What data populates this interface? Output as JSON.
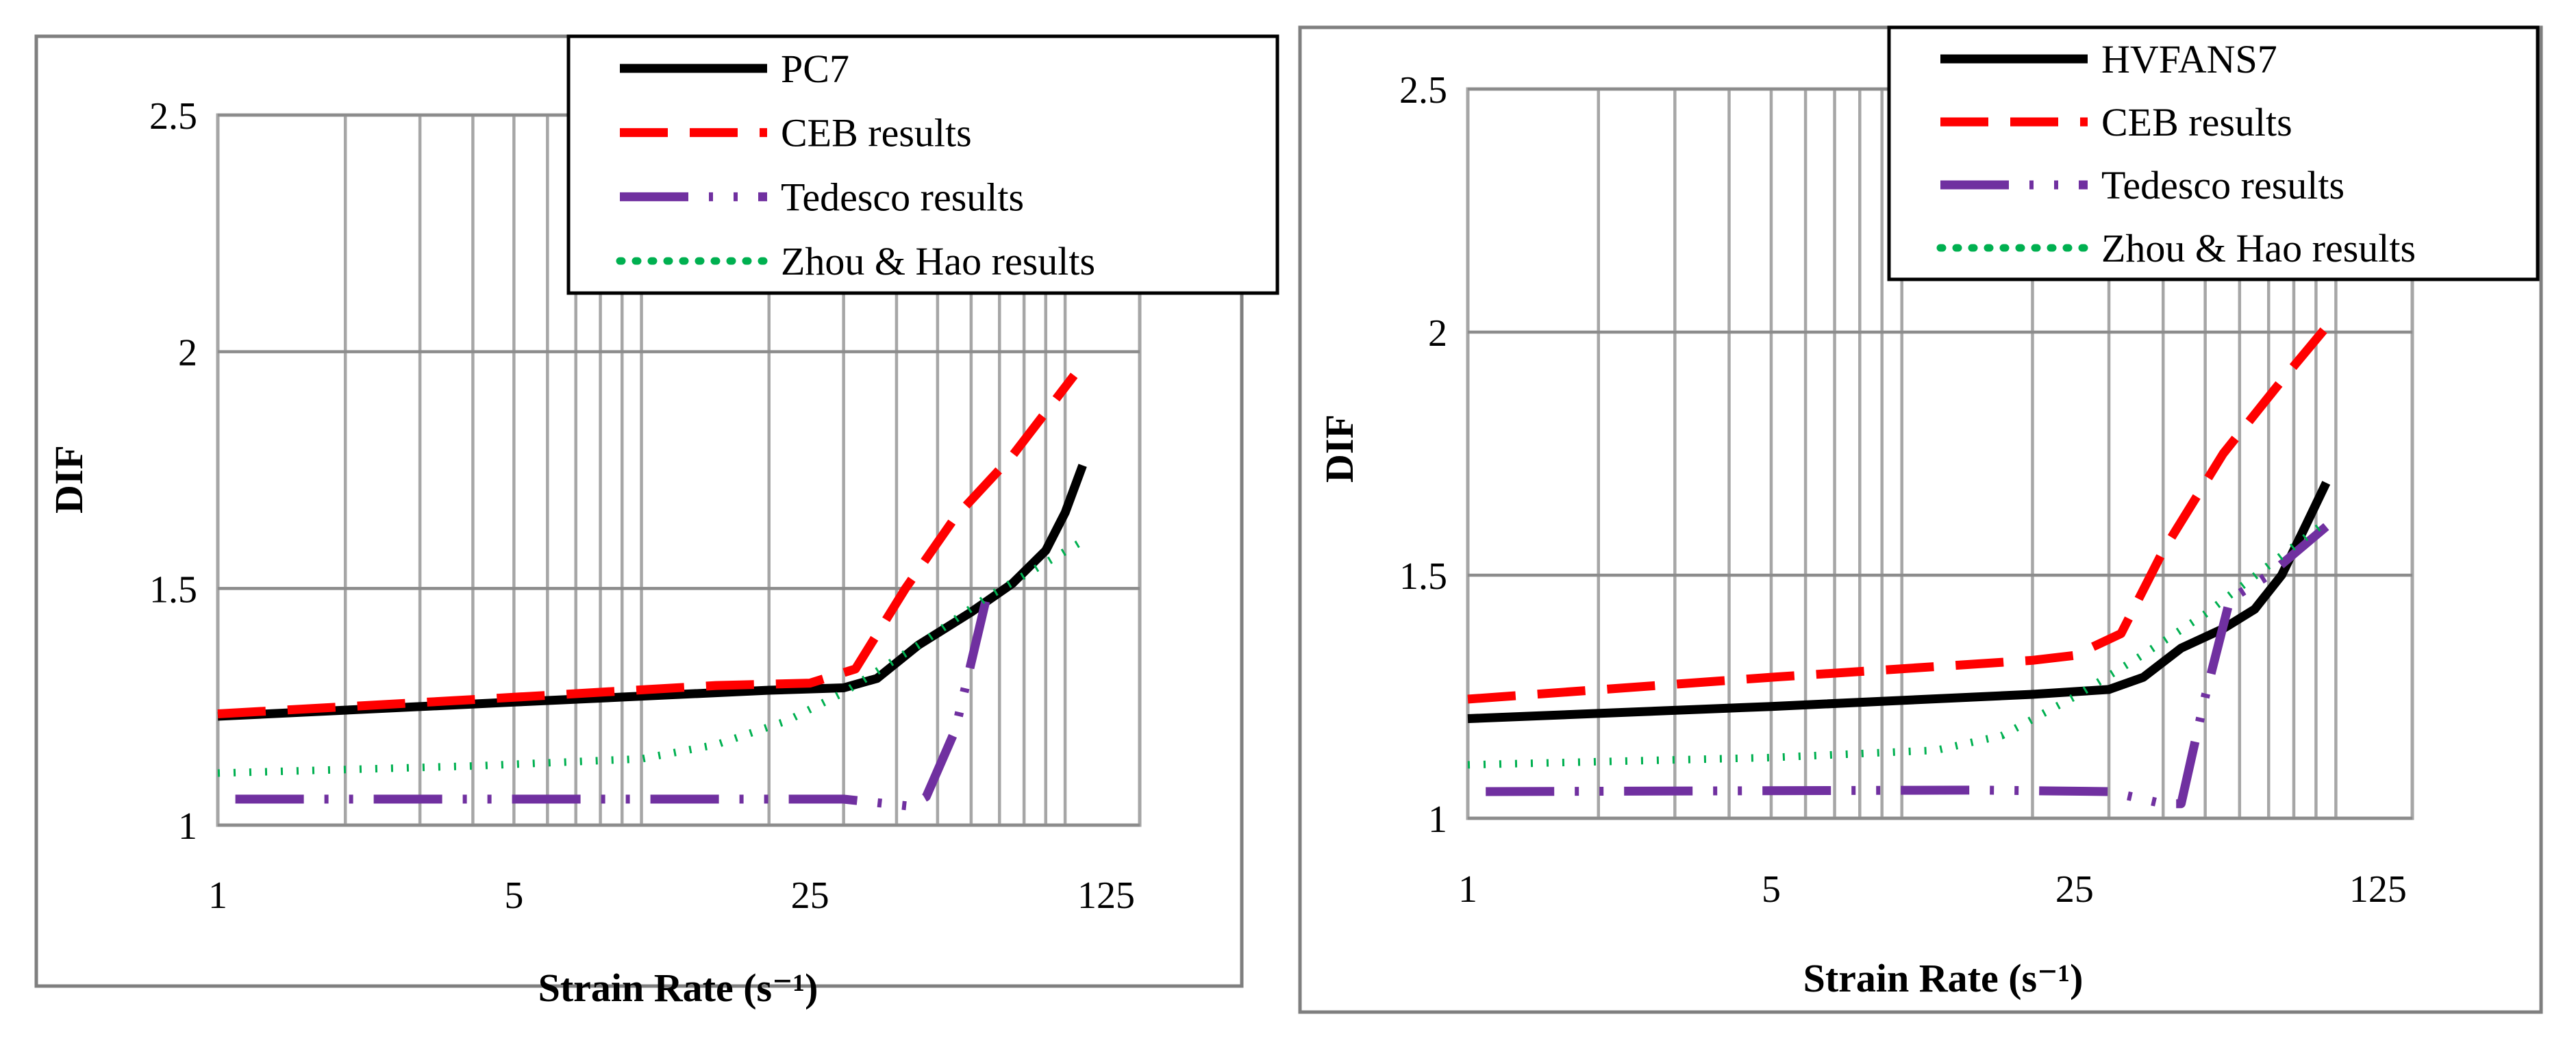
{
  "chart_data": [
    {
      "type": "line",
      "title": "",
      "xlabel": "Strain Rate (s⁻¹)",
      "ylabel": "DIF",
      "x_scale": "log",
      "xlim": [
        1,
        150
      ],
      "ylim": [
        1,
        2.5
      ],
      "x_ticks": [
        "1",
        "5",
        "25",
        "125"
      ],
      "x_tick_values": [
        1,
        5,
        25,
        125
      ],
      "y_ticks": [
        "1",
        "1.5",
        "2",
        "2.5"
      ],
      "y_tick_values": [
        1,
        1.5,
        2,
        2.5
      ],
      "grid": true,
      "legend_position": "top-right",
      "series": [
        {
          "name": "PC7",
          "color": "#000000",
          "style": "solid",
          "points": [
            [
              1,
              1.23
            ],
            [
              5,
              1.26
            ],
            [
              20,
              1.285
            ],
            [
              30,
              1.29
            ],
            [
              36,
              1.31
            ],
            [
              45,
              1.38
            ],
            [
              60,
              1.45
            ],
            [
              75,
              1.51
            ],
            [
              90,
              1.58
            ],
            [
              100,
              1.66
            ],
            [
              110,
              1.76
            ]
          ]
        },
        {
          "name": "CEB results",
          "color": "#ff0000",
          "style": "dashed",
          "points": [
            [
              1,
              1.235
            ],
            [
              5,
              1.27
            ],
            [
              15,
              1.295
            ],
            [
              25,
              1.3
            ],
            [
              32,
              1.33
            ],
            [
              42,
              1.5
            ],
            [
              55,
              1.65
            ],
            [
              75,
              1.78
            ],
            [
              105,
              1.95
            ]
          ]
        },
        {
          "name": "Tedesco results",
          "color": "#7030a0",
          "style": "dashdot",
          "points": [
            [
              1.1,
              1.055
            ],
            [
              15,
              1.055
            ],
            [
              30,
              1.055
            ],
            [
              43,
              1.04
            ],
            [
              47,
              1.06
            ],
            [
              55,
              1.2
            ],
            [
              66,
              1.5
            ]
          ]
        },
        {
          "name": "Zhou & Hao results",
          "color": "#00b050",
          "style": "dotted",
          "points": [
            [
              1,
              1.11
            ],
            [
              4,
              1.125
            ],
            [
              10,
              1.14
            ],
            [
              15,
              1.17
            ],
            [
              22,
              1.22
            ],
            [
              30,
              1.28
            ],
            [
              45,
              1.38
            ],
            [
              65,
              1.48
            ],
            [
              110,
              1.6
            ]
          ]
        }
      ]
    },
    {
      "type": "line",
      "title": "",
      "xlabel": "Strain Rate (s⁻¹)",
      "ylabel": "DIF",
      "x_scale": "log",
      "xlim": [
        1,
        150
      ],
      "ylim": [
        1,
        2.5
      ],
      "x_ticks": [
        "1",
        "5",
        "25",
        "125"
      ],
      "x_tick_values": [
        1,
        5,
        25,
        125
      ],
      "y_ticks": [
        "1",
        "1.5",
        "2",
        "2.5"
      ],
      "y_tick_values": [
        1,
        1.5,
        2,
        2.5
      ],
      "grid": true,
      "legend_position": "top-right",
      "series": [
        {
          "name": "HVFANS7",
          "color": "#000000",
          "style": "solid",
          "points": [
            [
              1,
              1.205
            ],
            [
              5,
              1.23
            ],
            [
              20,
              1.255
            ],
            [
              30,
              1.265
            ],
            [
              36,
              1.29
            ],
            [
              44,
              1.35
            ],
            [
              55,
              1.39
            ],
            [
              65,
              1.43
            ],
            [
              75,
              1.5
            ],
            [
              85,
              1.6
            ],
            [
              95,
              1.69
            ]
          ]
        },
        {
          "name": "CEB results",
          "color": "#ff0000",
          "style": "dashed",
          "points": [
            [
              1,
              1.245
            ],
            [
              5,
              1.29
            ],
            [
              20,
              1.325
            ],
            [
              25,
              1.335
            ],
            [
              32,
              1.38
            ],
            [
              40,
              1.55
            ],
            [
              55,
              1.75
            ],
            [
              75,
              1.9
            ],
            [
              95,
              2.01
            ]
          ]
        },
        {
          "name": "Tedesco results",
          "color": "#7030a0",
          "style": "dashdot",
          "points": [
            [
              1.1,
              1.055
            ],
            [
              15,
              1.058
            ],
            [
              30,
              1.055
            ],
            [
              40,
              1.03
            ],
            [
              44,
              1.03
            ],
            [
              50,
              1.25
            ],
            [
              57,
              1.45
            ],
            [
              70,
              1.5
            ],
            [
              95,
              1.6
            ]
          ]
        },
        {
          "name": "Zhou & Hao results",
          "color": "#00b050",
          "style": "dotted",
          "points": [
            [
              1,
              1.11
            ],
            [
              5,
              1.125
            ],
            [
              12,
              1.14
            ],
            [
              17,
              1.17
            ],
            [
              25,
              1.25
            ],
            [
              35,
              1.33
            ],
            [
              50,
              1.42
            ],
            [
              70,
              1.52
            ],
            [
              95,
              1.61
            ]
          ]
        }
      ]
    }
  ]
}
